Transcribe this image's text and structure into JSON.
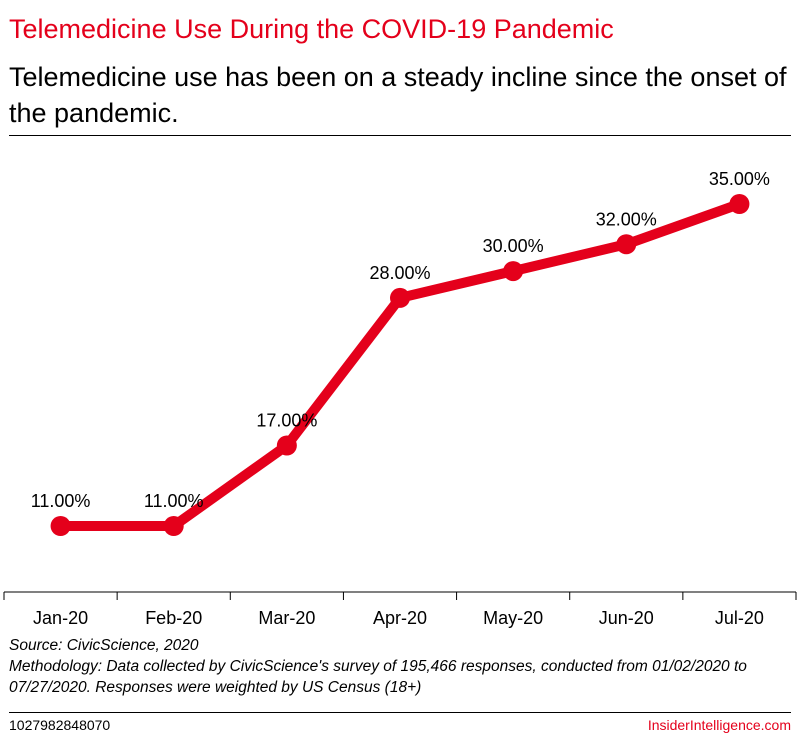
{
  "header": {
    "title": "Telemedicine Use During the COVID-19 Pandemic",
    "subtitle": "Telemedicine use has been on a steady incline since the onset of the pandemic."
  },
  "chart_data": {
    "type": "line",
    "categories": [
      "Jan-20",
      "Feb-20",
      "Mar-20",
      "Apr-20",
      "May-20",
      "Jun-20",
      "Jul-20"
    ],
    "series": [
      {
        "values": [
          11.0,
          11.0,
          17.0,
          28.0,
          30.0,
          32.0,
          35.0
        ],
        "labels": [
          "11.00%",
          "11.00%",
          "17.00%",
          "28.00%",
          "30.00%",
          "32.00%",
          "35.00%"
        ],
        "color": "#e4001b"
      }
    ],
    "grid": false,
    "legend": "none"
  },
  "footer": {
    "source": "Source: CivicScience, 2020",
    "methodology": "Methodology: Data collected by CivicScience's survey of 195,466 responses, conducted from 01/02/2020 to 07/27/2020. Responses were weighted by US Census (18+)",
    "chart_id": "1027982848070",
    "brand": "InsiderIntelligence.com"
  },
  "colors": {
    "accent": "#e4001b",
    "text": "#000000"
  }
}
